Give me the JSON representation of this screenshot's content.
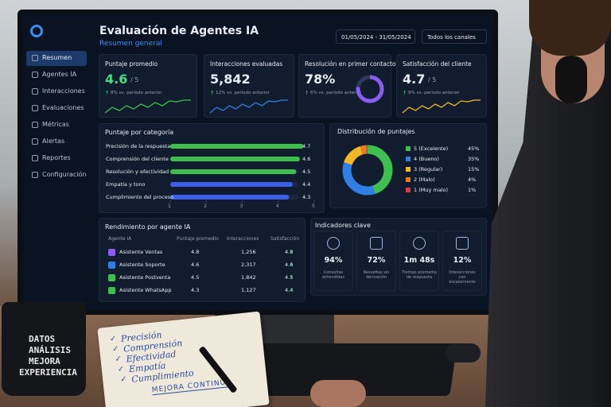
{
  "header": {
    "title": "Evaluación de Agentes IA",
    "subtitle": "Resumen general",
    "date_range": "01/05/2024 - 31/05/2024",
    "channel": "Todos los canales"
  },
  "nav": [
    "Resumen",
    "Agentes IA",
    "Interacciones",
    "Evaluaciones",
    "Métricas",
    "Alertas",
    "Reportes",
    "Configuración"
  ],
  "kpis": [
    {
      "label": "Puntaje promedio",
      "value": "4.6",
      "suffix": "/ 5",
      "trend": "8% vs. período anterior"
    },
    {
      "label": "Interacciones evaluadas",
      "value": "5,842",
      "trend": "12% vs. período anterior"
    },
    {
      "label": "Resolución en primer contacto",
      "value": "78%",
      "trend": "6% vs. período anterior"
    },
    {
      "label": "Satisfacción del cliente",
      "value": "4.7",
      "suffix": "/ 5",
      "trend": "9% vs. período anterior"
    }
  ],
  "category_chart": {
    "title": "Puntaje por categoría",
    "categories": [
      "Precisión de la respuesta",
      "Comprensión del cliente",
      "Resolución y efectividad",
      "Empatía y tono",
      "Cumplimiento del proceso"
    ],
    "values": [
      4.7,
      4.6,
      4.5,
      4.4,
      4.3
    ],
    "xlim": [
      1,
      5
    ],
    "xticks": [
      1,
      2,
      3,
      4,
      5
    ]
  },
  "score_distribution": {
    "title": "Distribución de puntajes",
    "labels": [
      "5 (Excelente)",
      "4 (Bueno)",
      "3 (Regular)",
      "2 (Malo)",
      "1 (Muy malo)"
    ],
    "values": [
      45,
      35,
      15,
      4,
      1
    ],
    "value_labels": [
      "45%",
      "35%",
      "15%",
      "4%",
      "1%"
    ],
    "colors": [
      "#3fbf4f",
      "#2f7fe6",
      "#f2b824",
      "#ef7a22",
      "#e03a3a"
    ]
  },
  "agent_table": {
    "title": "Rendimiento por agente IA",
    "columns": [
      "Agente IA",
      "Puntaje promedio",
      "Interacciones",
      "Satisfacción"
    ],
    "rows": [
      [
        "Asistente Ventas",
        "4.8",
        "1,256",
        "4.8"
      ],
      [
        "Asistente Soporte",
        "4.6",
        "2,317",
        "4.6"
      ],
      [
        "Asistente Postventa",
        "4.5",
        "1,842",
        "4.5"
      ],
      [
        "Asistente WhatsApp",
        "4.3",
        "1,127",
        "4.4"
      ]
    ]
  },
  "key_indicators": {
    "title": "Indicadores clave",
    "items": [
      {
        "value": "94%",
        "label": "Consultas entendidas"
      },
      {
        "value": "72%",
        "label": "Resueltas sin derivación"
      },
      {
        "value": "1m 48s",
        "label": "Tiempo promedio de respuesta"
      },
      {
        "value": "12%",
        "label": "Interacciones con escalamiento"
      }
    ]
  },
  "mug": [
    "DATOS",
    "ANÁLISIS",
    "MEJORA",
    "EXPERIENCIA"
  ],
  "notebook": {
    "items": [
      "Precisión",
      "Comprensión",
      "Efectividad",
      "Empatía",
      "Cumplimiento"
    ],
    "footer": "MEJORA CONTINUA"
  }
}
